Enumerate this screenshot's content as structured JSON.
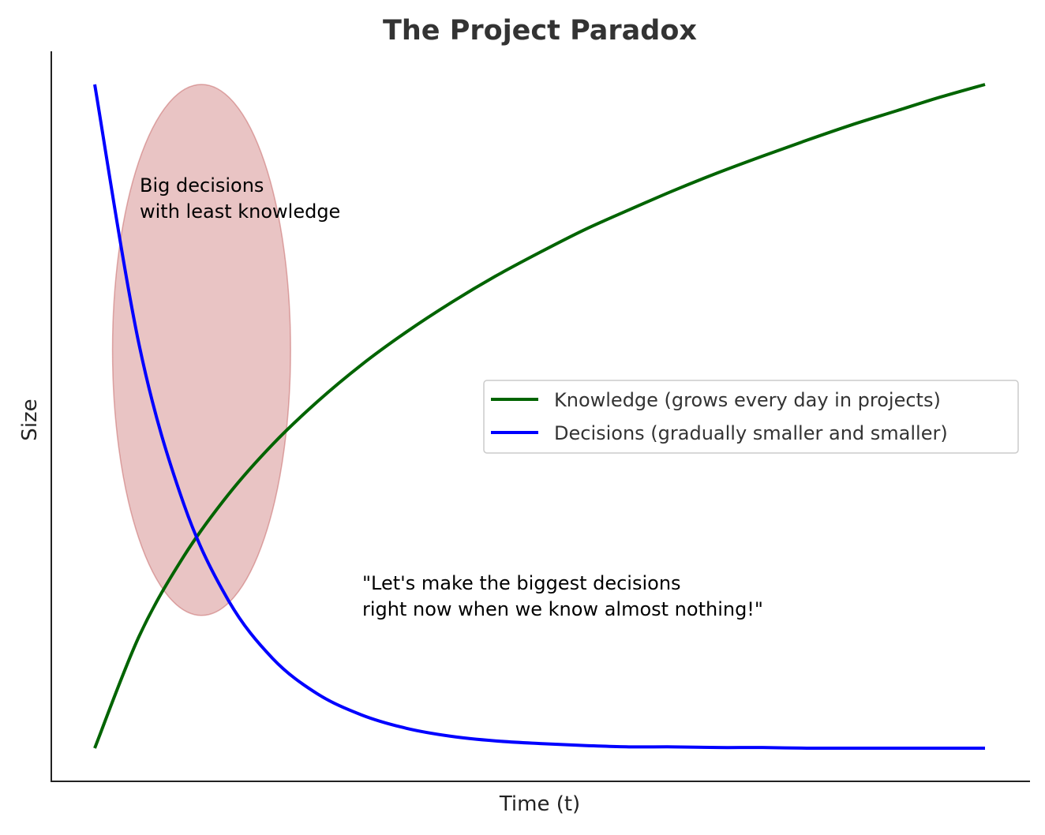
{
  "chart_data": {
    "type": "line",
    "title": "The Project Paradox",
    "xlabel": "Time (t)",
    "ylabel": "Size",
    "xlim": [
      0,
      10
    ],
    "ylim": [
      0,
      1
    ],
    "grid": false,
    "ticks_shown": false,
    "legend_placement": "center-right",
    "x": [
      0,
      0.5,
      1,
      1.5,
      2,
      2.5,
      3,
      3.5,
      4,
      4.5,
      5,
      5.5,
      6,
      6.5,
      7,
      7.5,
      8,
      8.5,
      9,
      9.5,
      10
    ],
    "series": [
      {
        "name": "Knowledge (grows every day in projects)",
        "color": "#006400",
        "values": [
          0,
          0.169,
          0.289,
          0.382,
          0.458,
          0.522,
          0.578,
          0.627,
          0.671,
          0.711,
          0.747,
          0.781,
          0.811,
          0.84,
          0.867,
          0.892,
          0.916,
          0.939,
          0.96,
          0.981,
          1.0
        ]
      },
      {
        "name": "Decisions (gradually smaller and smaller)",
        "color": "#0000ff",
        "values": [
          1,
          0.607,
          0.368,
          0.223,
          0.135,
          0.082,
          0.05,
          0.03,
          0.018,
          0.011,
          0.007,
          0.004,
          0.002,
          0.002,
          0.001,
          0.001,
          0,
          0,
          0,
          0,
          0
        ]
      }
    ],
    "highlight_ellipse": {
      "center": [
        1.2,
        0.6
      ],
      "radius_x": 1.0,
      "radius_y": 0.4,
      "color": "#d48a8a",
      "opacity": 0.5
    },
    "annotations": [
      {
        "text_lines": [
          "Big decisions",
          "with least knowledge"
        ],
        "at": [
          0.5,
          0.85
        ]
      },
      {
        "text_lines": [
          "\"Let's make the biggest decisions",
          "right now when we know almost nothing!\""
        ],
        "at": [
          3.0,
          0.25
        ]
      }
    ]
  }
}
